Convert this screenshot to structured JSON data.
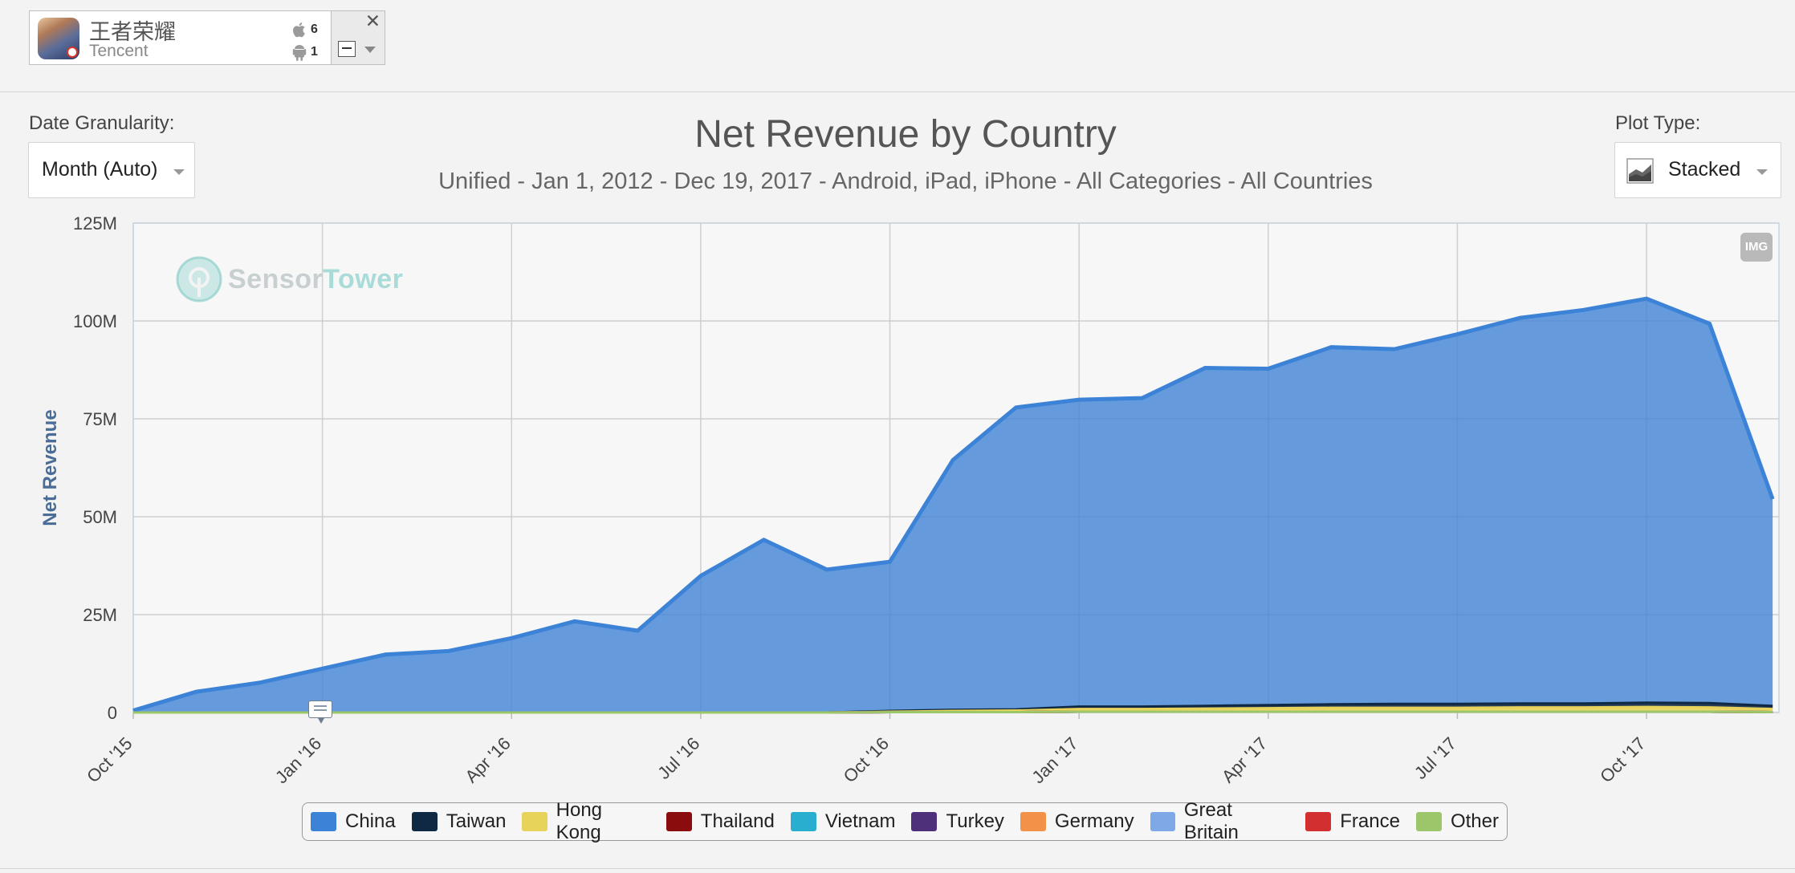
{
  "app": {
    "name": "王者荣耀",
    "publisher": "Tencent",
    "ios_count": "6",
    "android_count": "1"
  },
  "controls": {
    "date_granularity_label": "Date Granularity:",
    "date_granularity_value": "Month (Auto)",
    "plot_type_label": "Plot Type:",
    "plot_type_value": "Stacked",
    "export_button": "IMG"
  },
  "watermark": {
    "part1": "Sensor",
    "part2": "Tower"
  },
  "colors": {
    "China": "#3c82d6",
    "Taiwan": "#0f2944",
    "Hong Kong": "#e8d35a",
    "Thailand": "#8b0c0c",
    "Vietnam": "#2aaecf",
    "Turkey": "#4d2f7a",
    "Germany": "#f39149",
    "Great Britain": "#7ea8e6",
    "France": "#d12f30",
    "Other": "#9cc66a"
  },
  "chart_data": {
    "type": "area",
    "stacked": true,
    "title": "Net Revenue by Country",
    "subtitle": "Unified - Jan 1, 2012 - Dec 19, 2017 - Android, iPad, iPhone - All Categories - All Countries",
    "xlabel": "",
    "ylabel": "Net Revenue",
    "y_ticks": [
      "0",
      "25M",
      "50M",
      "75M",
      "100M",
      "125M"
    ],
    "ylim": [
      0,
      125
    ],
    "x_tick_labels": [
      "Oct '15",
      "Jan '16",
      "Apr '16",
      "Jul '16",
      "Oct '16",
      "Jan '17",
      "Apr '17",
      "Jul '17",
      "Oct '17"
    ],
    "grid": true,
    "legend_position": "bottom",
    "x": [
      "Oct '15",
      "Nov '15",
      "Dec '15",
      "Jan '16",
      "Feb '16",
      "Mar '16",
      "Apr '16",
      "May '16",
      "Jun '16",
      "Jul '16",
      "Aug '16",
      "Sep '16",
      "Oct '16",
      "Nov '16",
      "Dec '16",
      "Jan '17",
      "Feb '17",
      "Mar '17",
      "Apr '17",
      "May '17",
      "Jun '17",
      "Jul '17",
      "Aug '17",
      "Sep '17",
      "Oct '17",
      "Nov '17",
      "Dec '17"
    ],
    "series": [
      {
        "name": "China",
        "values": [
          0.5,
          5.3,
          7.6,
          11.2,
          14.8,
          15.7,
          19.0,
          23.3,
          20.9,
          34.9,
          44.1,
          36.5,
          38.1,
          63.8,
          77.1,
          78.4,
          78.8,
          86.3,
          85.9,
          91.2,
          90.6,
          94.4,
          98.5,
          100.5,
          103.2,
          96.9,
          52.8
        ]
      },
      {
        "name": "Taiwan",
        "values": [
          0,
          0,
          0,
          0,
          0,
          0,
          0,
          0,
          0,
          0,
          0,
          0,
          0.2,
          0.3,
          0.3,
          0.6,
          0.6,
          0.7,
          0.8,
          0.9,
          1.0,
          1.0,
          1.0,
          1.0,
          1.1,
          1.1,
          0.8
        ]
      },
      {
        "name": "Hong Kong",
        "values": [
          0,
          0,
          0,
          0,
          0,
          0,
          0,
          0,
          0,
          0,
          0,
          0,
          0.1,
          0.3,
          0.4,
          0.7,
          0.7,
          0.8,
          0.9,
          1.0,
          1.0,
          1.0,
          1.1,
          1.1,
          1.2,
          1.1,
          0.8
        ]
      },
      {
        "name": "Thailand",
        "values": [
          0,
          0,
          0,
          0,
          0,
          0,
          0,
          0,
          0,
          0,
          0,
          0,
          0,
          0,
          0,
          0,
          0,
          0,
          0,
          0,
          0,
          0,
          0,
          0,
          0,
          0,
          0
        ]
      },
      {
        "name": "Vietnam",
        "values": [
          0,
          0,
          0,
          0,
          0,
          0,
          0,
          0,
          0,
          0,
          0,
          0,
          0,
          0,
          0,
          0,
          0,
          0,
          0,
          0,
          0,
          0,
          0,
          0,
          0,
          0,
          0
        ]
      },
      {
        "name": "Turkey",
        "values": [
          0,
          0,
          0,
          0,
          0,
          0,
          0,
          0,
          0,
          0,
          0,
          0,
          0,
          0,
          0,
          0,
          0,
          0,
          0,
          0,
          0,
          0,
          0,
          0,
          0,
          0,
          0
        ]
      },
      {
        "name": "Germany",
        "values": [
          0,
          0,
          0,
          0,
          0,
          0,
          0,
          0,
          0,
          0,
          0,
          0,
          0,
          0,
          0,
          0,
          0,
          0,
          0,
          0,
          0,
          0,
          0,
          0,
          0,
          0,
          0
        ]
      },
      {
        "name": "Great Britain",
        "values": [
          0,
          0,
          0,
          0,
          0,
          0,
          0,
          0,
          0,
          0,
          0,
          0,
          0,
          0,
          0,
          0,
          0,
          0,
          0,
          0,
          0,
          0,
          0,
          0,
          0,
          0,
          0
        ]
      },
      {
        "name": "France",
        "values": [
          0,
          0,
          0,
          0,
          0,
          0,
          0,
          0,
          0,
          0,
          0,
          0,
          0,
          0,
          0,
          0,
          0,
          0,
          0,
          0,
          0,
          0,
          0,
          0,
          0,
          0,
          0
        ]
      },
      {
        "name": "Other",
        "values": [
          0,
          0,
          0,
          0,
          0,
          0,
          0,
          0,
          0,
          0,
          0,
          0,
          0.1,
          0.1,
          0.1,
          0.2,
          0.2,
          0.2,
          0.2,
          0.2,
          0.2,
          0.2,
          0.2,
          0.2,
          0.2,
          0.2,
          0.1
        ]
      }
    ],
    "legend": [
      "China",
      "Taiwan",
      "Hong Kong",
      "Thailand",
      "Vietnam",
      "Turkey",
      "Germany",
      "Great Britain",
      "France",
      "Other"
    ]
  }
}
